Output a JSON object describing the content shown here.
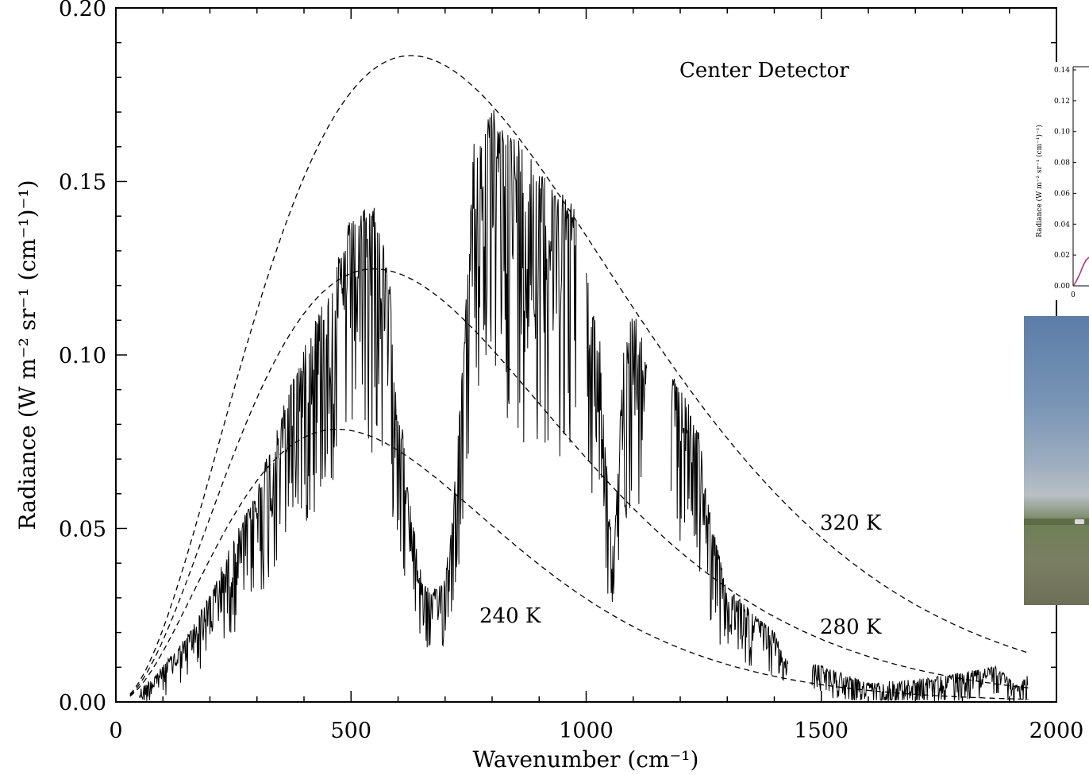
{
  "chart_data": {
    "type": "line",
    "title": "",
    "xlabel": "Wavenumber (cm⁻¹)",
    "ylabel": "Radiance (W m⁻² sr⁻¹ (cm⁻¹)⁻¹)",
    "xlim": [
      0,
      2000
    ],
    "ylim": [
      0,
      0.2
    ],
    "xticks": [
      "0",
      "500",
      "1000",
      "1500",
      "2000"
    ],
    "yticks": [
      "0.00",
      "0.05",
      "0.10",
      "0.15",
      "0.20"
    ],
    "annotations": {
      "detector": "Center Detector",
      "t320": "320 K",
      "t280": "280 K",
      "t240": "240 K"
    },
    "blackbody_curves": [
      {
        "label": "320 K",
        "temperature_K": 320,
        "x_range": [
          30,
          1940
        ]
      },
      {
        "label": "280 K",
        "temperature_K": 280,
        "x_range": [
          30,
          1940
        ]
      },
      {
        "label": "240 K",
        "temperature_K": 240,
        "x_range": [
          30,
          1940
        ]
      }
    ],
    "measured_spectrum": {
      "description_points": [
        [
          50,
          0.003
        ],
        [
          100,
          0.01
        ],
        [
          150,
          0.018
        ],
        [
          200,
          0.03
        ],
        [
          250,
          0.045
        ],
        [
          300,
          0.06
        ],
        [
          350,
          0.08
        ],
        [
          400,
          0.1
        ],
        [
          450,
          0.115
        ],
        [
          500,
          0.135
        ],
        [
          550,
          0.14
        ],
        [
          580,
          0.12
        ],
        [
          600,
          0.09
        ],
        [
          620,
          0.06
        ],
        [
          650,
          0.035
        ],
        [
          670,
          0.03
        ],
        [
          700,
          0.035
        ],
        [
          720,
          0.06
        ],
        [
          740,
          0.1
        ],
        [
          760,
          0.155
        ],
        [
          800,
          0.165
        ],
        [
          850,
          0.158
        ],
        [
          900,
          0.15
        ],
        [
          970,
          0.14
        ],
        [
          990,
          0.13
        ],
        [
          1000,
          0.12
        ],
        [
          1030,
          0.1
        ],
        [
          1050,
          0.05
        ],
        [
          1060,
          0.045
        ],
        [
          1080,
          0.1
        ],
        [
          1100,
          0.11
        ],
        [
          1130,
          0.095
        ],
        [
          1200,
          0.09
        ],
        [
          1240,
          0.075
        ],
        [
          1260,
          0.055
        ],
        [
          1300,
          0.03
        ],
        [
          1320,
          0.03
        ],
        [
          1350,
          0.025
        ],
        [
          1400,
          0.02
        ],
        [
          1420,
          0.012
        ],
        [
          1500,
          0.01
        ],
        [
          1600,
          0.005
        ],
        [
          1700,
          0.006
        ],
        [
          1800,
          0.008
        ],
        [
          1870,
          0.01
        ],
        [
          1920,
          0.004
        ],
        [
          1940,
          0.008
        ]
      ],
      "band_gaps": [
        [
          980,
          1000
        ],
        [
          1130,
          1180
        ],
        [
          1430,
          1480
        ]
      ]
    }
  },
  "inset_chart": {
    "yticks": [
      "0.14",
      "0.12",
      "0.10",
      "0.08",
      "0.06",
      "0.04",
      "0.02",
      "0.00"
    ],
    "xtick": "0",
    "ylabel": "Radiance (W m⁻² sr⁻¹ (cm⁻¹)⁻¹)",
    "line_color": "#c0207a"
  },
  "photo": {
    "icon": "field-landscape-photo"
  }
}
